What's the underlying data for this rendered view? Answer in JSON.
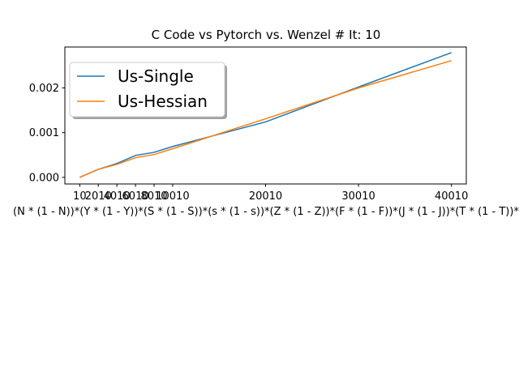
{
  "chart_data": {
    "type": "line",
    "title": "C Code vs Pytorch vs. Wenzel # It: 10",
    "xlabel": "(N * (1 - N))*(Y * (1 - Y))*(S * (1 - S))*(s * (1 - s))*(Z * (1 - Z))*(F * (1 - F))*(J * (1 - J))*(T * (1 - T))*",
    "ylabel": "",
    "x": [
      10,
      2010,
      4010,
      6010,
      8010,
      10010,
      20010,
      30010,
      40010
    ],
    "x_tick_labels": [
      "10",
      "2010",
      "4010",
      "6010",
      "8010",
      "10010",
      "20010",
      "30010",
      "40010"
    ],
    "y_ticks": [
      0.0,
      0.001,
      0.002
    ],
    "y_tick_labels": [
      "0.000",
      "0.001",
      "0.002"
    ],
    "xlim": [
      -1590,
      41610
    ],
    "ylim": [
      -0.000148,
      0.002915
    ],
    "grid": false,
    "legend_position": "top-left",
    "series": [
      {
        "name": "Us-Single",
        "color": "#1f77b4",
        "values": [
          0.0,
          0.00018,
          0.00031,
          0.00049,
          0.00056,
          0.00069,
          0.00124,
          0.00202,
          0.00279
        ]
      },
      {
        "name": "Us-Hessian",
        "color": "#ff7f0e",
        "values": [
          0.0,
          0.00018,
          0.00029,
          0.00044,
          0.00051,
          0.00064,
          0.00131,
          0.002,
          0.00261
        ]
      }
    ]
  }
}
